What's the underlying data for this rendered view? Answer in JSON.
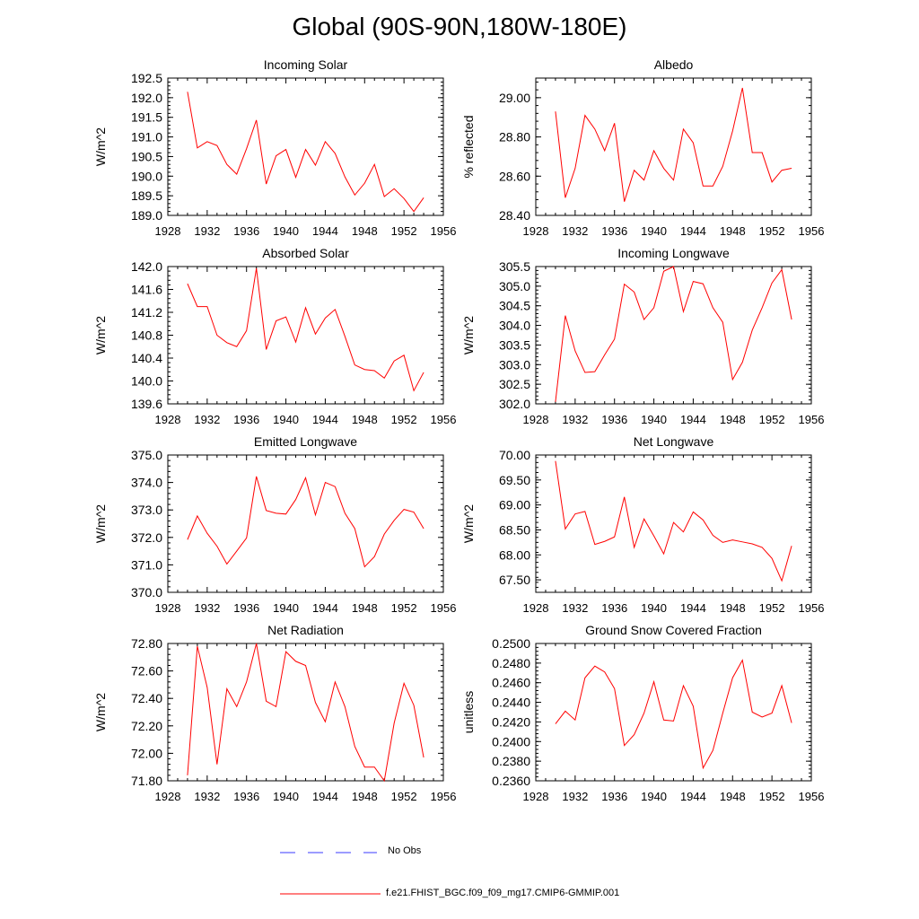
{
  "page_title": "Global (90S-90N,180W-180E)",
  "legend": {
    "no_obs_label": "No Obs",
    "model_label": "f.e21.FHIST_BGC.f09_f09_mg17.CMIP6-GMMIP.001",
    "no_obs_color": "#3a3aff",
    "model_color": "#ff0000"
  },
  "chart_data": [
    {
      "type": "line",
      "title": "Incoming Solar",
      "ylabel": "W/m^2",
      "xlim": [
        1928,
        1956
      ],
      "ylim": [
        189.0,
        192.5
      ],
      "xticks": [
        "1928",
        "1932",
        "1936",
        "1940",
        "1944",
        "1948",
        "1952",
        "1956"
      ],
      "yticks": [
        "189.0",
        "189.5",
        "190.0",
        "190.5",
        "191.0",
        "191.5",
        "192.0",
        "192.5"
      ],
      "x": [
        1930,
        1931,
        1932,
        1933,
        1934,
        1935,
        1936,
        1937,
        1938,
        1939,
        1940,
        1941,
        1942,
        1943,
        1944,
        1945,
        1946,
        1947,
        1948,
        1949,
        1950,
        1951,
        1952,
        1953,
        1954
      ],
      "values": [
        192.15,
        190.72,
        190.88,
        190.78,
        190.3,
        190.05,
        190.7,
        191.43,
        189.8,
        190.52,
        190.68,
        189.97,
        190.68,
        190.28,
        190.88,
        190.58,
        189.98,
        189.52,
        189.82,
        190.3,
        189.48,
        189.68,
        189.43,
        189.1,
        189.45
      ]
    },
    {
      "type": "line",
      "title": "Albedo",
      "ylabel": "% reflected",
      "xlim": [
        1928,
        1956
      ],
      "ylim": [
        28.4,
        29.1
      ],
      "xticks": [
        "1928",
        "1932",
        "1936",
        "1940",
        "1944",
        "1948",
        "1952",
        "1956"
      ],
      "yticks": [
        "28.40",
        "28.60",
        "28.80",
        "29.00"
      ],
      "ytick_values": [
        28.4,
        28.6,
        28.8,
        29.0
      ],
      "x": [
        1930,
        1931,
        1932,
        1933,
        1934,
        1935,
        1936,
        1937,
        1938,
        1939,
        1940,
        1941,
        1942,
        1943,
        1944,
        1945,
        1946,
        1947,
        1948,
        1949,
        1950,
        1951,
        1952,
        1953,
        1954
      ],
      "values": [
        28.93,
        28.49,
        28.64,
        28.91,
        28.84,
        28.73,
        28.87,
        28.47,
        28.63,
        28.58,
        28.73,
        28.64,
        28.58,
        28.84,
        28.77,
        28.55,
        28.55,
        28.65,
        28.83,
        29.05,
        28.72,
        28.72,
        28.57,
        28.63,
        28.64
      ]
    },
    {
      "type": "line",
      "title": "Absorbed Solar",
      "ylabel": "W/m^2",
      "xlim": [
        1928,
        1956
      ],
      "ylim": [
        139.6,
        142.0
      ],
      "xticks": [
        "1928",
        "1932",
        "1936",
        "1940",
        "1944",
        "1948",
        "1952",
        "1956"
      ],
      "yticks": [
        "139.6",
        "140.0",
        "140.4",
        "140.8",
        "141.2",
        "141.6",
        "142.0"
      ],
      "x": [
        1930,
        1931,
        1932,
        1933,
        1934,
        1935,
        1936,
        1937,
        1938,
        1939,
        1940,
        1941,
        1942,
        1943,
        1944,
        1945,
        1946,
        1947,
        1948,
        1949,
        1950,
        1951,
        1952,
        1953,
        1954
      ],
      "values": [
        141.7,
        141.3,
        141.3,
        140.8,
        140.67,
        140.6,
        140.88,
        141.97,
        140.55,
        141.05,
        141.12,
        140.68,
        141.28,
        140.82,
        141.1,
        141.25,
        140.78,
        140.28,
        140.2,
        140.18,
        140.05,
        140.35,
        140.45,
        139.83,
        140.15
      ]
    },
    {
      "type": "line",
      "title": "Incoming Longwave",
      "ylabel": "W/m^2",
      "xlim": [
        1928,
        1956
      ],
      "ylim": [
        302.0,
        305.5
      ],
      "xticks": [
        "1928",
        "1932",
        "1936",
        "1940",
        "1944",
        "1948",
        "1952",
        "1956"
      ],
      "yticks": [
        "302.0",
        "302.5",
        "303.0",
        "303.5",
        "304.0",
        "304.5",
        "305.0",
        "305.5"
      ],
      "x": [
        1930,
        1931,
        1932,
        1933,
        1934,
        1935,
        1936,
        1937,
        1938,
        1939,
        1940,
        1941,
        1942,
        1943,
        1944,
        1945,
        1946,
        1947,
        1948,
        1949,
        1950,
        1951,
        1952,
        1953,
        1954
      ],
      "values": [
        302.05,
        304.25,
        303.35,
        302.8,
        302.82,
        303.25,
        303.65,
        305.05,
        304.85,
        304.15,
        304.45,
        305.38,
        305.5,
        304.35,
        305.12,
        305.06,
        304.45,
        304.08,
        302.62,
        303.06,
        303.88,
        304.45,
        305.08,
        305.42,
        304.15
      ]
    },
    {
      "type": "line",
      "title": "Emitted Longwave",
      "ylabel": "W/m^2",
      "xlim": [
        1928,
        1956
      ],
      "ylim": [
        370.0,
        375.0
      ],
      "xticks": [
        "1928",
        "1932",
        "1936",
        "1940",
        "1944",
        "1948",
        "1952",
        "1956"
      ],
      "yticks": [
        "370.0",
        "371.0",
        "372.0",
        "373.0",
        "374.0",
        "375.0"
      ],
      "x": [
        1930,
        1931,
        1932,
        1933,
        1934,
        1935,
        1936,
        1937,
        1938,
        1939,
        1940,
        1941,
        1942,
        1943,
        1944,
        1945,
        1946,
        1947,
        1948,
        1949,
        1950,
        1951,
        1952,
        1953,
        1954
      ],
      "values": [
        371.92,
        372.78,
        372.15,
        371.68,
        371.03,
        371.5,
        371.98,
        374.22,
        372.98,
        372.88,
        372.85,
        373.38,
        374.17,
        372.82,
        374.0,
        373.85,
        372.88,
        372.32,
        370.93,
        371.3,
        372.12,
        372.62,
        373.02,
        372.92,
        372.32
      ]
    },
    {
      "type": "line",
      "title": "Net Longwave",
      "ylabel": "W/m^2",
      "xlim": [
        1928,
        1956
      ],
      "ylim": [
        67.25,
        70.0
      ],
      "xticks": [
        "1928",
        "1932",
        "1936",
        "1940",
        "1944",
        "1948",
        "1952",
        "1956"
      ],
      "yticks": [
        "67.50",
        "68.00",
        "68.50",
        "69.00",
        "69.50",
        "70.00"
      ],
      "ytick_values": [
        67.5,
        68.0,
        68.5,
        69.0,
        69.5,
        70.0
      ],
      "x": [
        1930,
        1931,
        1932,
        1933,
        1934,
        1935,
        1936,
        1937,
        1938,
        1939,
        1940,
        1941,
        1942,
        1943,
        1944,
        1945,
        1946,
        1947,
        1948,
        1949,
        1950,
        1951,
        1952,
        1953,
        1954
      ],
      "values": [
        69.88,
        68.52,
        68.82,
        68.87,
        68.21,
        68.27,
        68.36,
        69.16,
        68.15,
        68.72,
        68.38,
        68.02,
        68.65,
        68.46,
        68.86,
        68.7,
        68.39,
        68.25,
        68.3,
        68.26,
        68.22,
        68.15,
        67.93,
        67.48,
        68.18
      ]
    },
    {
      "type": "line",
      "title": "Net Radiation",
      "ylabel": "W/m^2",
      "xlim": [
        1928,
        1956
      ],
      "ylim": [
        71.8,
        72.8
      ],
      "xticks": [
        "1928",
        "1932",
        "1936",
        "1940",
        "1944",
        "1948",
        "1952",
        "1956"
      ],
      "yticks": [
        "71.80",
        "72.00",
        "72.20",
        "72.40",
        "72.60",
        "72.80"
      ],
      "ytick_values": [
        71.8,
        72.0,
        72.2,
        72.4,
        72.6,
        72.8
      ],
      "x": [
        1930,
        1931,
        1932,
        1933,
        1934,
        1935,
        1936,
        1937,
        1938,
        1939,
        1940,
        1941,
        1942,
        1943,
        1944,
        1945,
        1946,
        1947,
        1948,
        1949,
        1950,
        1951,
        1952,
        1953,
        1954
      ],
      "values": [
        71.84,
        72.78,
        72.48,
        71.92,
        72.47,
        72.34,
        72.52,
        72.8,
        72.38,
        72.34,
        72.74,
        72.67,
        72.64,
        72.37,
        72.23,
        72.52,
        72.34,
        72.05,
        71.9,
        71.9,
        71.8,
        72.22,
        72.51,
        72.35,
        71.97
      ]
    },
    {
      "type": "line",
      "title": "Ground Snow Covered Fraction",
      "ylabel": "unitless",
      "xlim": [
        1928,
        1956
      ],
      "ylim": [
        0.236,
        0.25
      ],
      "xticks": [
        "1928",
        "1932",
        "1936",
        "1940",
        "1944",
        "1948",
        "1952",
        "1956"
      ],
      "yticks": [
        "0.2360",
        "0.2380",
        "0.2400",
        "0.2420",
        "0.2440",
        "0.2460",
        "0.2480",
        "0.2500"
      ],
      "ytick_values": [
        0.236,
        0.238,
        0.24,
        0.242,
        0.244,
        0.246,
        0.248,
        0.25
      ],
      "x": [
        1930,
        1931,
        1932,
        1933,
        1934,
        1935,
        1936,
        1937,
        1938,
        1939,
        1940,
        1941,
        1942,
        1943,
        1944,
        1945,
        1946,
        1947,
        1948,
        1949,
        1950,
        1951,
        1952,
        1953,
        1954
      ],
      "values": [
        0.2418,
        0.2431,
        0.2422,
        0.2465,
        0.2477,
        0.2471,
        0.2454,
        0.2396,
        0.2407,
        0.2429,
        0.2461,
        0.2422,
        0.2421,
        0.2457,
        0.2436,
        0.2373,
        0.2391,
        0.2429,
        0.2465,
        0.2483,
        0.243,
        0.2425,
        0.2429,
        0.2457,
        0.2419
      ]
    }
  ]
}
